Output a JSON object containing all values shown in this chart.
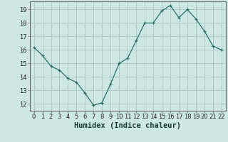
{
  "x": [
    0,
    1,
    2,
    3,
    4,
    5,
    6,
    7,
    8,
    9,
    10,
    11,
    12,
    13,
    14,
    15,
    16,
    17,
    18,
    19,
    20,
    21,
    22
  ],
  "y": [
    16.2,
    15.6,
    14.8,
    14.5,
    13.9,
    13.6,
    12.8,
    11.9,
    12.1,
    13.5,
    15.0,
    15.4,
    16.7,
    18.0,
    18.0,
    18.9,
    19.3,
    18.4,
    19.0,
    18.3,
    17.4,
    16.3,
    16.0
  ],
  "xlabel": "Humidex (Indice chaleur)",
  "xlim": [
    -0.5,
    22.5
  ],
  "ylim": [
    11.5,
    19.6
  ],
  "yticks": [
    12,
    13,
    14,
    15,
    16,
    17,
    18,
    19
  ],
  "xticks": [
    0,
    1,
    2,
    3,
    4,
    5,
    6,
    7,
    8,
    9,
    10,
    11,
    12,
    13,
    14,
    15,
    16,
    17,
    18,
    19,
    20,
    21,
    22
  ],
  "line_color": "#2e6e65",
  "marker": "+",
  "bg_color": "#cde8e4",
  "grid_color": "#b0ccca",
  "spine_color": "#666666",
  "tick_label_fontsize": 6.0,
  "xlabel_fontsize": 7.5
}
